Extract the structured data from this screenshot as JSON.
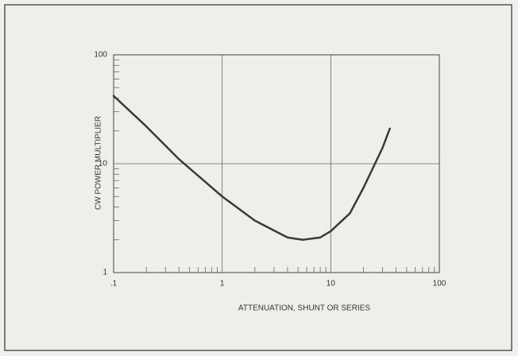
{
  "chart_data": {
    "type": "line",
    "xlabel": "ATTENUATION, SHUNT OR SERIES",
    "ylabel": "CW POWER MULTIPLIER",
    "x": [
      0.1,
      0.2,
      0.4,
      1,
      2,
      4,
      5.5,
      8,
      10,
      15,
      20,
      30,
      35
    ],
    "series": [
      {
        "color": "#3a3a3a",
        "values": [
          42,
          22,
          11,
          5,
          3,
          2.1,
          2.0,
          2.1,
          2.4,
          3.5,
          6,
          14,
          21
        ]
      }
    ],
    "xlim": [
      0.1,
      100
    ],
    "ylim": [
      1,
      100
    ],
    "log_x": true,
    "log_y": true,
    "grid": true,
    "xticks": [
      {
        "value": 0.1,
        "label": ".1"
      },
      1,
      10,
      100
    ],
    "yticks": [
      1,
      10,
      100
    ],
    "xticks_minor": [
      0.2,
      0.3,
      0.4,
      0.5,
      0.6,
      0.7,
      0.8,
      0.9,
      2,
      3,
      4,
      5,
      6,
      7,
      8,
      9,
      20,
      30,
      40,
      50,
      60,
      70,
      80,
      90
    ],
    "yticks_minor": [
      2,
      3,
      4,
      5,
      6,
      7,
      8,
      9,
      20,
      30,
      40,
      50,
      60,
      70,
      80,
      90
    ]
  }
}
